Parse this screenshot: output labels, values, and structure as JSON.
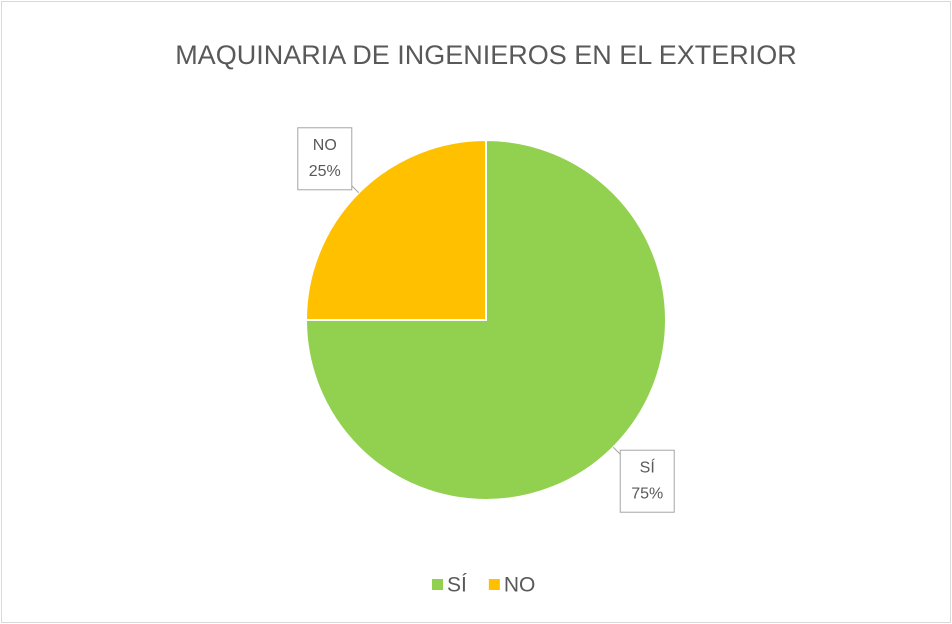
{
  "chart_data": {
    "type": "pie",
    "title": "MAQUINARIA DE INGENIEROS EN EL EXTERIOR",
    "categories": [
      "SÍ",
      "NO"
    ],
    "values": [
      75,
      25
    ],
    "value_labels": [
      "75%",
      "25%"
    ],
    "colors": [
      "#92d050",
      "#ffc000"
    ],
    "legend": "bottom"
  }
}
